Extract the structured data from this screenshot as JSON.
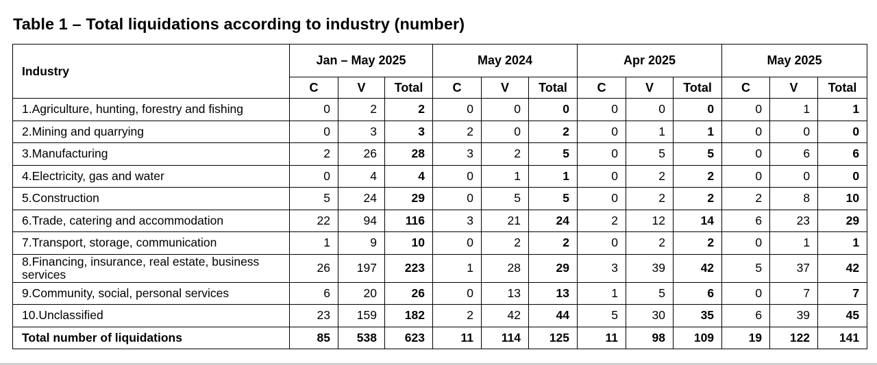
{
  "title": "Table 1 – Total liquidations according to industry (number)",
  "table": {
    "industry_header": "Industry",
    "periods": [
      "Jan – May 2025",
      "May 2024",
      "Apr 2025",
      "May 2025"
    ],
    "subheaders": [
      "C",
      "V",
      "Total"
    ],
    "rows": [
      {
        "name": "1.Agriculture, hunting, forestry and fishing",
        "values": [
          "0",
          "2",
          "2",
          "0",
          "0",
          "0",
          "0",
          "0",
          "0",
          "0",
          "1",
          "1"
        ]
      },
      {
        "name": "2.Mining and quarrying",
        "values": [
          "0",
          "3",
          "3",
          "2",
          "0",
          "2",
          "0",
          "1",
          "1",
          "0",
          "0",
          "0"
        ]
      },
      {
        "name": "3.Manufacturing",
        "values": [
          "2",
          "26",
          "28",
          "3",
          "2",
          "5",
          "0",
          "5",
          "5",
          "0",
          "6",
          "6"
        ]
      },
      {
        "name": "4.Electricity, gas and water",
        "values": [
          "0",
          "4",
          "4",
          "0",
          "1",
          "1",
          "0",
          "2",
          "2",
          "0",
          "0",
          "0"
        ]
      },
      {
        "name": "5.Construction",
        "values": [
          "5",
          "24",
          "29",
          "0",
          "5",
          "5",
          "0",
          "2",
          "2",
          "2",
          "8",
          "10"
        ]
      },
      {
        "name": "6.Trade, catering and accommodation",
        "values": [
          "22",
          "94",
          "116",
          "3",
          "21",
          "24",
          "2",
          "12",
          "14",
          "6",
          "23",
          "29"
        ]
      },
      {
        "name": "7.Transport, storage, communication",
        "values": [
          "1",
          "9",
          "10",
          "0",
          "2",
          "2",
          "0",
          "2",
          "2",
          "0",
          "1",
          "1"
        ]
      },
      {
        "name": "8.Financing, insurance, real estate, business services",
        "values": [
          "26",
          "197",
          "223",
          "1",
          "28",
          "29",
          "3",
          "39",
          "42",
          "5",
          "37",
          "42"
        ]
      },
      {
        "name": "9.Community, social, personal services",
        "values": [
          "6",
          "20",
          "26",
          "0",
          "13",
          "13",
          "1",
          "5",
          "6",
          "0",
          "7",
          "7"
        ]
      },
      {
        "name": "10.Unclassified",
        "values": [
          "23",
          "159",
          "182",
          "2",
          "42",
          "44",
          "5",
          "30",
          "35",
          "6",
          "39",
          "45"
        ]
      }
    ],
    "total_row": {
      "name": "Total number of liquidations",
      "values": [
        "85",
        "538",
        "623",
        "11",
        "114",
        "125",
        "11",
        "98",
        "109",
        "19",
        "122",
        "141"
      ]
    }
  }
}
